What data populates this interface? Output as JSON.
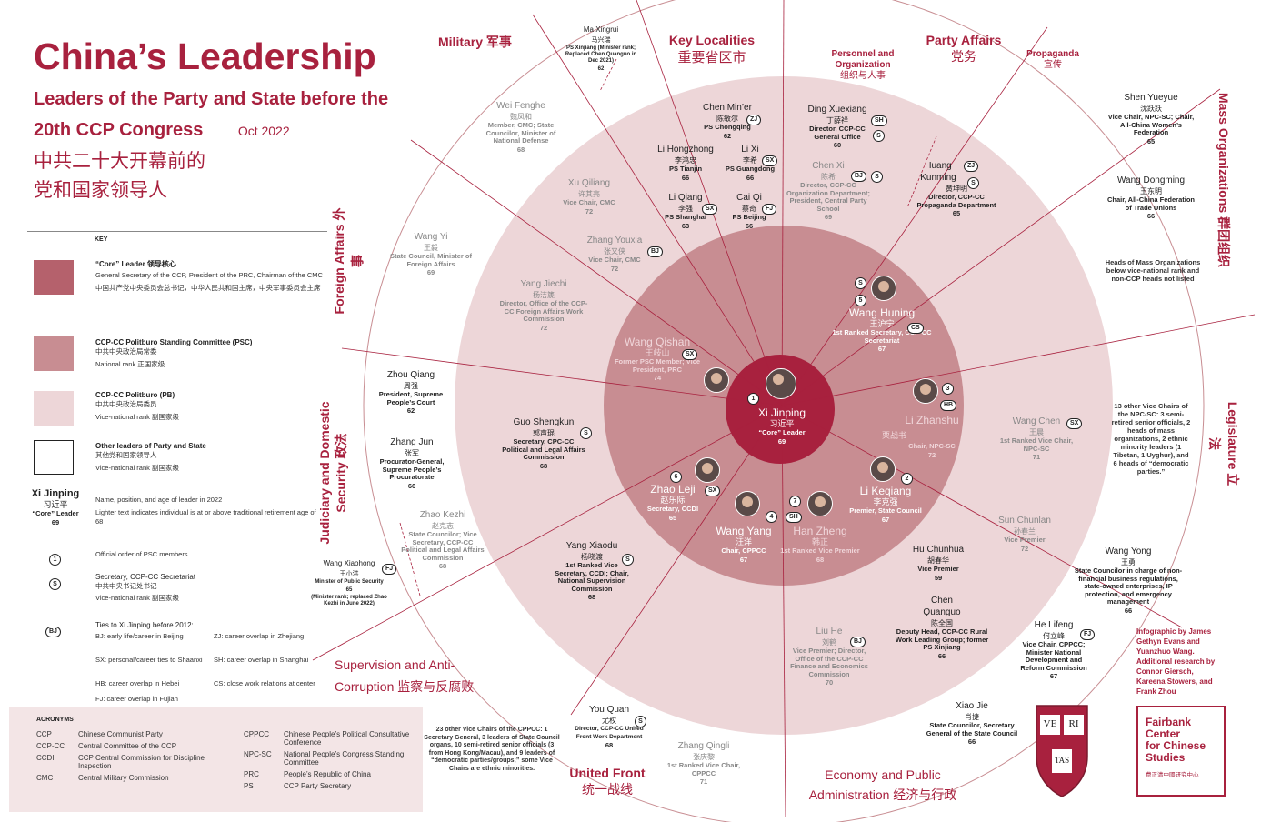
{
  "title": "China’s Leadership",
  "subtitle_line1": "Leaders of the Party and State before the",
  "subtitle_line2": "20th CCP Congress",
  "date": "Oct 2022",
  "zh_title_1": "中共二十大开幕前的",
  "zh_title_2": "党和国家领导人",
  "colors": {
    "accent": "#a8213e",
    "core": "#b5616c",
    "psc": "#c88d92",
    "pb": "#edd6d8",
    "outer": "#f6eced"
  },
  "sections": {
    "military": "Military 军事",
    "localities_en": "Key Localities",
    "localities_zh": "重要省区市",
    "personnel_en": "Personnel and Organization",
    "personnel_zh": "组织与人事",
    "party_en": "Party Affairs",
    "party_zh": "党务",
    "propaganda_en": "Propaganda",
    "propaganda_zh": "宣传",
    "mass": "Mass Organizations 群团组织",
    "foreign": "Foreign Affairs 外事",
    "judiciary": "Judiciary and Domestic Security 政法",
    "legislature": "Legislature 立法",
    "supervision": "Supervision and Anti-Corruption 监察与反腐败",
    "united_en": "United Front",
    "united_zh": "统一战线",
    "economy": "Economy and Public Administration 经济与行政"
  },
  "key": {
    "heading": "KEY",
    "core_label": "“Core” Leader 领导核心",
    "core_desc": "General Secretary of the CCP, President of the PRC, Chairman of the CMC",
    "core_zh": "中国共产党中央委员会总书记，中华人民共和国主席，中央军事委员会主席",
    "psc_label": "CCP-CC Politburo Standing Committee (PSC)",
    "psc_zh": "中共中央政治局常委",
    "psc_rank": "National rank 正国家级",
    "pb_label": "CCP-CC Politburo (PB)",
    "pb_zh": "中共中央政治局委员",
    "pb_rank": "Vice-national rank 副国家级",
    "other_label": "Other leaders of Party and State",
    "other_zh": "其他党和国家领导人",
    "other_rank": "Vice-national rank 副国家级",
    "sample_name": "Xi Jinping",
    "sample_zh": "习近平",
    "sample_pos": "“Core” Leader",
    "sample_age": "69",
    "sample_desc": "Name, position, and age of leader in 2022",
    "light_desc": "Lighter text indicates individual is at or above traditional retirement age of 68",
    "dot": ".",
    "order_icon": "1",
    "order_desc": "Official order of PSC members",
    "secretariat_icon": "S",
    "secretariat_desc": "Secretary, CCP-CC Secretariat",
    "secretariat_zh": "中共中央书记处书记",
    "secretariat_rank": "Vice-national rank 副国家级",
    "ties_icon": "BJ",
    "ties_desc": "Ties to Xi Jinping before 2012:",
    "ties": [
      "BJ: early life/career in Beijing",
      "ZJ: career overlap in Zhejiang",
      "SX: personal/career ties to Shaanxi",
      "SH: career overlap in Shanghai",
      "HB: career overlap in Hebei",
      "CS: close work relations at center",
      "FJ: career overlap in Fujian"
    ]
  },
  "acronyms": {
    "heading": "ACRONYMS",
    "items": [
      {
        "abbr": "CCP",
        "full": "Chinese Communist Party"
      },
      {
        "abbr": "CCP-CC",
        "full": "Central Committee of the CCP"
      },
      {
        "abbr": "CCDI",
        "full": "CCP Central Commission for Discipline Inspection"
      },
      {
        "abbr": "CMC",
        "full": "Central Military Commission"
      },
      {
        "abbr": "CPPCC",
        "full": "Chinese People’s Political Consultative Conference"
      },
      {
        "abbr": "NPC-SC",
        "full": "National People’s Congress Standing Committee"
      },
      {
        "abbr": "PRC",
        "full": "People’s Republic of China"
      },
      {
        "abbr": "PS",
        "full": "CCP Party Secretary"
      }
    ]
  },
  "core": {
    "name": "Xi Jinping",
    "zh": "习近平",
    "pos": "“Core” Leader",
    "age": "69",
    "order": "1"
  },
  "psc": [
    {
      "name": "Wang Huning",
      "zh": "王沪宁",
      "pos": "1st Ranked Secretary, CCP-CC Secretariat",
      "age": "67",
      "order": "5",
      "tie": "CS"
    },
    {
      "name": "Li Zhanshu",
      "zh": "栗战书",
      "pos": "Chair, NPC-SC",
      "age": "72",
      "order": "3",
      "tie": "HB"
    },
    {
      "name": "Li Keqiang",
      "zh": "李克强",
      "pos": "Premier, State Council",
      "age": "67",
      "order": "2"
    },
    {
      "name": "Han Zheng",
      "zh": "韩正",
      "pos": "1st Ranked Vice Premier",
      "age": "68",
      "order": "7",
      "tie": "SH"
    },
    {
      "name": "Wang Yang",
      "zh": "汪洋",
      "pos": "Chair, CPPCC",
      "age": "67",
      "order": "4"
    },
    {
      "name": "Zhao Leji",
      "zh": "赵乐际",
      "pos": "Secretary, CCDI",
      "age": "65",
      "order": "6",
      "tie": "SX"
    },
    {
      "name": "Wang Qishan",
      "zh": "王岐山",
      "pos": "Former PSC Member; Vice President, PRC",
      "age": "74",
      "tie": "SX"
    }
  ],
  "pb": {
    "chen_miner": {
      "name": "Chen Min’er",
      "zh": "陈敏尔",
      "pos": "PS Chongqing",
      "age": "62",
      "tie": "ZJ"
    },
    "li_hongzhong": {
      "name": "Li Hongzhong",
      "zh": "李鸿忠",
      "pos": "PS Tianjin",
      "age": "66"
    },
    "li_xi": {
      "name": "Li Xi",
      "zh": "李希",
      "pos": "PS Guangdong",
      "age": "66",
      "tie": "SX"
    },
    "li_qiang": {
      "name": "Li Qiang",
      "zh": "李强",
      "pos": "PS Shanghai",
      "age": "63",
      "tie": "SX"
    },
    "cai_qi": {
      "name": "Cai Qi",
      "zh": "蔡奇",
      "pos": "PS Beijing",
      "age": "66",
      "tie": "FJ"
    },
    "xu_qiliang": {
      "name": "Xu Qiliang",
      "zh": "许其亮",
      "pos": "Vice Chair, CMC",
      "age": "72"
    },
    "zhang_youxia": {
      "name": "Zhang Youxia",
      "zh": "张又侠",
      "pos": "Vice Chair, CMC",
      "age": "72",
      "tie": "BJ"
    },
    "yang_jiechi": {
      "name": "Yang Jiechi",
      "zh": "杨洁篪",
      "pos": "Director, Office of the CCP-CC Foreign Affairs Work Commission",
      "age": "72"
    },
    "ding_xuexiang": {
      "name": "Ding Xuexiang",
      "zh": "丁薛祥",
      "pos": "Director, CCP-CC General Office",
      "age": "60",
      "tie": "SH",
      "sec": "S"
    },
    "chen_xi": {
      "name": "Chen Xi",
      "zh": "陈希",
      "pos": "Director, CCP-CC Organization Department; President, Central Party School",
      "age": "69",
      "tie": "BJ",
      "sec": "S"
    },
    "huang_kunming": {
      "name": "Huang Kunming",
      "zh": "黄坤明",
      "pos": "Director, CCP-CC Propaganda Department",
      "age": "65",
      "tie": "ZJ",
      "sec": "S"
    },
    "guo_shengkun": {
      "name": "Guo Shengkun",
      "zh": "郭声琨",
      "pos": "Secretary, CPC-CC Political and Legal Affairs Commission",
      "age": "68",
      "sec": "S"
    },
    "yang_xiaodu": {
      "name": "Yang Xiaodu",
      "zh": "杨晓渡",
      "pos": "1st Ranked Vice Secretary, CCDI; Chair, National Supervision Commission",
      "age": "68",
      "sec": "S"
    },
    "wang_chen": {
      "name": "Wang Chen",
      "zh": "王晨",
      "pos": "1st Ranked Vice Chair, NPC-SC",
      "age": "71",
      "tie": "SX"
    },
    "sun_chunlan": {
      "name": "Sun Chunlan",
      "zh": "孙春兰",
      "pos": "Vice Premier",
      "age": "72"
    },
    "hu_chunhua": {
      "name": "Hu Chunhua",
      "zh": "胡春华",
      "pos": "Vice Premier",
      "age": "59"
    },
    "liu_he": {
      "name": "Liu He",
      "zh": "刘鹤",
      "pos": "Vice Premier; Director, Office of the CCP-CC Finance and Economics Commission",
      "age": "70",
      "tie": "BJ"
    },
    "chen_quanguo": {
      "name": "Chen Quanguo",
      "zh": "陈全国",
      "pos": "Deputy Head, CCP-CC Rural Work Leading Group; former PS Xinjiang",
      "age": "66"
    }
  },
  "others": {
    "ma_xingrui": {
      "name": "Ma Xingrui",
      "zh": "马兴瑞",
      "pos": "PS Xinjiang (Minister rank; Replaced Chen Quanguo in Dec 2021)",
      "age": "62"
    },
    "wei_fenghe": {
      "name": "Wei Fenghe",
      "zh": "魏凤和",
      "pos": "Member, CMC; State Councilor, Minister of National Defense",
      "age": "68"
    },
    "wang_yi": {
      "name": "Wang Yi",
      "zh": "王毅",
      "pos": "State Council, Minister of Foreign Affairs",
      "age": "69"
    },
    "shen_yueyue": {
      "name": "Shen Yueyue",
      "zh": "沈跃跃",
      "pos": "Vice Chair, NPC-SC; Chair, All-China Women’s Federation",
      "age": "65"
    },
    "wang_dongming": {
      "name": "Wang Dongming",
      "zh": "王东明",
      "pos": "Chair, All-China Federation of Trade Unions",
      "age": "66"
    },
    "mass_note": "Heads of Mass Organizations below vice-national rank and non-CCP heads not listed",
    "zhou_qiang": {
      "name": "Zhou Qiang",
      "zh": "周强",
      "pos": "President, Supreme People’s Court",
      "age": "62"
    },
    "zhang_jun": {
      "name": "Zhang Jun",
      "zh": "张军",
      "pos": "Procurator-General, Supreme People’s Procuratorate",
      "age": "66"
    },
    "zhao_kezhi": {
      "name": "Zhao Kezhi",
      "zh": "赵克志",
      "pos": "State Councilor; Vice Secretary, CCP-CC Political and Legal Affairs Commission",
      "age": "68"
    },
    "wang_xiaohong": {
      "name": "Wang Xiaohong",
      "zh": "王小洪",
      "pos": "Minister of Public Security",
      "age": "65",
      "note": "(Minister rank; replaced Zhao Kezhi in June 2022)",
      "tie": "FJ"
    },
    "legis_note": "13 other Vice Chairs of the NPC-SC: 3 semi-retired senior officials, 2 heads of mass organizations, 2 ethnic minority leaders (1 Tibetan, 1 Uyghur), and 6 heads of “democratic parties.”",
    "wang_yong": {
      "name": "Wang Yong",
      "zh": "王勇",
      "pos": "State Councilor in charge of non-financial business regulations, state-owned enterprises, IP protection, and emergency management",
      "age": "66"
    },
    "he_lifeng": {
      "name": "He Lifeng",
      "zh": "何立峰",
      "pos": "Vice Chair, CPPCC; Minister National Development and Reform Commission",
      "age": "67",
      "tie": "FJ"
    },
    "xiao_jie": {
      "name": "Xiao Jie",
      "zh": "肖捷",
      "pos": "State Councilor, Secretary General of the State Council",
      "age": "66"
    },
    "you_quan": {
      "name": "You Quan",
      "zh": "尤权",
      "pos": "Director, CCP-CC United Front Work Department",
      "age": "68",
      "sec": "S"
    },
    "zhang_qingli": {
      "name": "Zhang Qingli",
      "zh": "张庆黎",
      "pos": "1st Ranked Vice Chair, CPPCC",
      "age": "71"
    },
    "cppcc_note": "23 other Vice Chairs of the CPPCC: 1 Secretary General, 3 leaders of State Council organs, 10 semi-retired senior officials (3 from Hong Kong/Macau), and 9 leaders of “democratic parties/groups;” some Vice Chairs are ethnic minorities."
  },
  "credits": "Infographic by James Gethyn Evans and Yuanzhuo Wang. Additional research by Connor Giersch, Kareena Stowers, and Frank Zhou",
  "seal": {
    "ve": "VE",
    "ri": "RI",
    "tas": "TAS"
  },
  "fairbank": {
    "line1": "Fairbank",
    "line2": "Center",
    "line3": "for Chinese",
    "line4": "Studies",
    "zh": "费正清中國研究中心"
  }
}
